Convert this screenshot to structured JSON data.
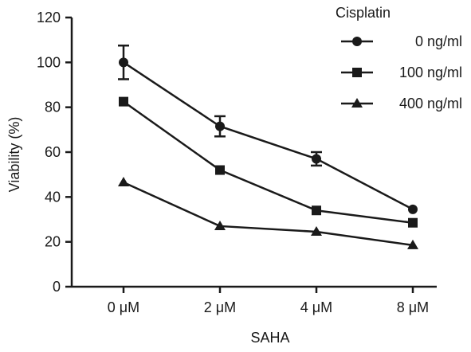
{
  "chart_data": {
    "type": "line",
    "title": "",
    "xlabel": "SAHA",
    "ylabel": "Viability (%)",
    "categories": [
      "0 μM",
      "2 μM",
      "4 μM",
      "8 μM"
    ],
    "ylim": [
      0,
      120
    ],
    "yticks": [
      0,
      20,
      40,
      60,
      80,
      100,
      120
    ],
    "grid": false,
    "legend": {
      "title": "Cisplatin",
      "placement": "top-right"
    },
    "series": [
      {
        "name": "0 ng/ml",
        "marker": "circle",
        "values": [
          100,
          71.5,
          57,
          34.5
        ],
        "errors": [
          7.5,
          4.5,
          3,
          0
        ]
      },
      {
        "name": "100 ng/ml",
        "marker": "square",
        "values": [
          82.5,
          52,
          34,
          28.5
        ],
        "errors": [
          0,
          0,
          0,
          0
        ]
      },
      {
        "name": "400 ng/ml",
        "marker": "triangle",
        "values": [
          46.5,
          27,
          24.5,
          18.5
        ],
        "errors": [
          0,
          0,
          0,
          0
        ]
      }
    ]
  }
}
